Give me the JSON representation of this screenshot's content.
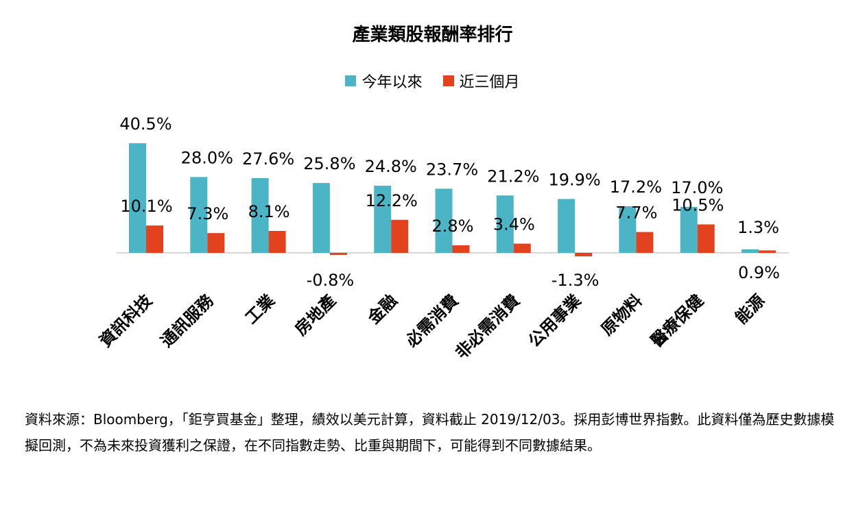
{
  "chart_data": {
    "type": "bar",
    "title": "產業類股報酬率排行",
    "legend_position": "top",
    "grid": false,
    "categories": [
      "資訊科技",
      "通訊服務",
      "工業",
      "房地產",
      "金融",
      "必需消費",
      "非必需消費",
      "公用事業",
      "原物料",
      "醫療保健",
      "能源"
    ],
    "series": [
      {
        "name": "今年以來",
        "color": "#4bb5c6",
        "values": [
          40.5,
          28.0,
          27.6,
          25.8,
          24.8,
          23.7,
          21.2,
          19.9,
          17.2,
          17.0,
          1.3
        ]
      },
      {
        "name": "近三個月",
        "color": "#e2421e",
        "values": [
          10.1,
          7.3,
          8.1,
          -0.8,
          12.2,
          2.8,
          3.4,
          -1.3,
          7.7,
          10.5,
          0.9
        ]
      }
    ],
    "series_labels": [
      [
        "40.5%",
        "28.0%",
        "27.6%",
        "25.8%",
        "24.8%",
        "23.7%",
        "21.2%",
        "19.9%",
        "17.2%",
        "17.0%",
        "1.3%"
      ],
      [
        "10.1%",
        "7.3%",
        "8.1%",
        "-0.8%",
        "12.2%",
        "2.8%",
        "3.4%",
        "-1.3%",
        "7.7%",
        "10.5%",
        "0.9%"
      ]
    ]
  },
  "footnote": "資料來源：Bloomberg，「鉅亨買基金」整理，績效以美元計算，資料截止 2019/12/03。採用彭博世界指數。此資料僅為歷史數據模擬回測，不為未來投資獲利之保證，在不同指數走勢、比重與期間下，可能得到不同數據結果。"
}
